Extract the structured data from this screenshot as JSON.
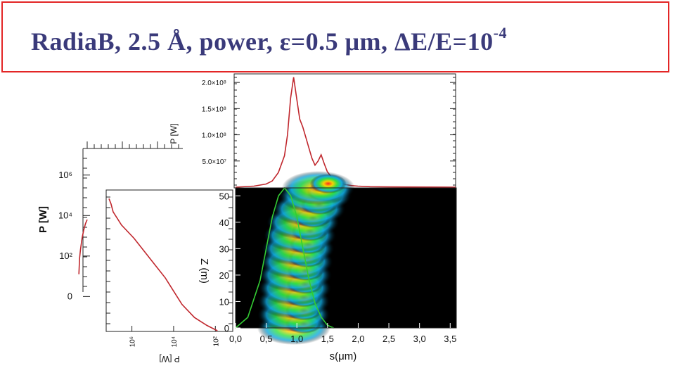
{
  "slide": {
    "title_prefix": "Radia",
    "title_rest": "B, 2.5 Å, power, ε=0.5 μm, ΔE/E=10",
    "title_exponent": "-4"
  },
  "colors": {
    "title_border": "#e32626",
    "title_text": "#3a3a7a",
    "curve": "#c0272d",
    "green_curve": "#33cc33"
  },
  "chart_data": [
    {
      "id": "top-power-profile",
      "type": "line",
      "xlabel": "",
      "ylabel": "P [W]",
      "xlim": [
        0.0,
        3.6
      ],
      "ylim": [
        0,
        215000000.0
      ],
      "y_tick_labels": [
        "5.0×10⁷",
        "1.0×10⁸",
        "1.5×10⁸",
        "2.0×10⁸"
      ],
      "y_tick_values": [
        50000000.0,
        100000000.0,
        150000000.0,
        200000000.0
      ],
      "series": [
        {
          "x": [
            0.0,
            0.3,
            0.5,
            0.6,
            0.7,
            0.8,
            0.85,
            0.9,
            0.95,
            1.0,
            1.05,
            1.1,
            1.15,
            1.2,
            1.25,
            1.3,
            1.35,
            1.4,
            1.45,
            1.5,
            1.55,
            1.6,
            1.7,
            1.8,
            1.9,
            2.0,
            2.2,
            2.5,
            3.6
          ],
          "y": [
            0,
            2000000.0,
            6000000.0,
            12000000.0,
            28000000.0,
            60000000.0,
            100000000.0,
            170000000.0,
            210000000.0,
            170000000.0,
            130000000.0,
            115000000.0,
            95000000.0,
            75000000.0,
            55000000.0,
            42000000.0,
            50000000.0,
            62000000.0,
            45000000.0,
            30000000.0,
            22000000.0,
            15000000.0,
            8000000.0,
            5000000.0,
            3000000.0,
            2000000.0,
            1000000.0,
            500000.0,
            0
          ]
        }
      ]
    },
    {
      "id": "left-log-power",
      "type": "line",
      "ylabel": "P [W]",
      "y_tick_labels": [
        "0",
        "10²",
        "10⁴",
        "10⁶"
      ],
      "y_tick_values": [
        0,
        2,
        4,
        6
      ],
      "ylim": [
        -0.3,
        7.0
      ],
      "series": [
        {
          "z": [
            1,
            5,
            10,
            20,
            30,
            40,
            50
          ],
          "log10_P": [
            1.1,
            1.9,
            2.3,
            2.9,
            3.3,
            3.6,
            3.8
          ]
        }
      ]
    },
    {
      "id": "rotated-power-vs-z",
      "type": "line",
      "xlabel": "P [W]",
      "x_tick_labels": [
        "10⁶",
        "10⁴",
        "10²"
      ],
      "x_tick_values": [
        6,
        4,
        2
      ],
      "xlim": [
        7.2,
        1.2
      ],
      "ylim": [
        0,
        53
      ],
      "series": [
        {
          "z": [
            0,
            2,
            5,
            10,
            15,
            20,
            25,
            30,
            35,
            40,
            45,
            48,
            50
          ],
          "log10_P": [
            1.9,
            2.4,
            3.0,
            3.6,
            4.0,
            4.4,
            4.9,
            5.4,
            5.9,
            6.5,
            6.9,
            7.0,
            7.1
          ]
        }
      ]
    },
    {
      "id": "z-vs-s-heatmap",
      "type": "heatmap",
      "xlabel": "s(μm)",
      "ylabel": "Z (m)",
      "xlim": [
        0.0,
        3.6
      ],
      "ylim": [
        0,
        53
      ],
      "x_tick_labels": [
        "0,0",
        "0,5",
        "1,0",
        "1,5",
        "2,0",
        "2,5",
        "3,0",
        "3,5"
      ],
      "x_tick_values": [
        0.0,
        0.5,
        1.0,
        1.5,
        2.0,
        2.5,
        3.0,
        3.5
      ],
      "y_tick_labels": [
        "0",
        "10",
        "20",
        "30",
        "40",
        "50"
      ],
      "y_tick_values": [
        0,
        10,
        20,
        30,
        40,
        50
      ],
      "ridge": {
        "z": [
          0,
          5,
          10,
          15,
          20,
          25,
          30,
          35,
          40,
          45,
          50,
          53
        ],
        "s_center": [
          0.95,
          0.95,
          0.95,
          0.97,
          0.98,
          1.0,
          1.02,
          1.05,
          1.1,
          1.2,
          1.3,
          1.35
        ]
      },
      "green_profile": {
        "s": [
          0.0,
          0.2,
          0.4,
          0.5,
          0.6,
          0.7,
          0.8,
          0.9,
          1.0,
          1.1,
          1.2,
          1.3,
          1.4,
          1.5,
          1.6
        ],
        "z": [
          0,
          4,
          18,
          30,
          42,
          50,
          53,
          50,
          42,
          30,
          18,
          9,
          4,
          1,
          0
        ]
      }
    }
  ]
}
